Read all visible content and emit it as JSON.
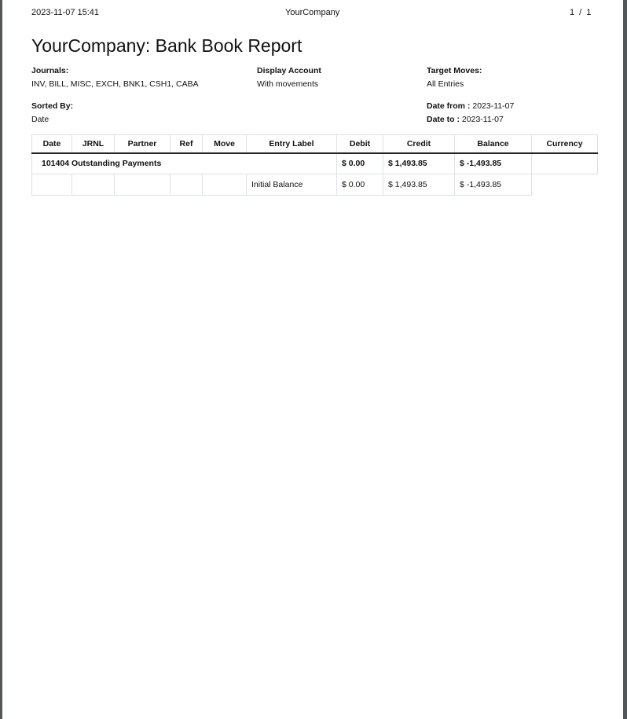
{
  "header": {
    "datetime": "2023-11-07 15:41",
    "company": "YourCompany",
    "page": "1 / 1"
  },
  "title": "YourCompany: Bank Book Report",
  "filters": {
    "journals_label": "Journals:",
    "journals": "INV, BILL, MISC, EXCH, BNK1, CSH1, CABA",
    "display_label": "Display Account",
    "display": "With movements",
    "target_label": "Target Moves:",
    "target": "All Entries",
    "sorted_label": "Sorted By:",
    "sorted": "Date",
    "date_from_label": "Date from :",
    "date_from": "2023-11-07",
    "date_to_label": "Date to :",
    "date_to": "2023-11-07"
  },
  "table": {
    "columns": [
      "Date",
      "JRNL",
      "Partner",
      "Ref",
      "Move",
      "Entry Label",
      "Debit",
      "Credit",
      "Balance",
      "Currency"
    ],
    "account_row": {
      "name": "101404 Outstanding Payments",
      "debit": "$ 0.00",
      "credit": "$ 1,493.85",
      "balance": "$ -1,493.85",
      "currency": ""
    },
    "lines": [
      {
        "date": "",
        "jrnl": "",
        "partner": "",
        "ref": "",
        "move": "",
        "label": "Initial Balance",
        "debit": "$ 0.00",
        "credit": "$ 1,493.85",
        "balance": "$ -1,493.85"
      }
    ]
  }
}
